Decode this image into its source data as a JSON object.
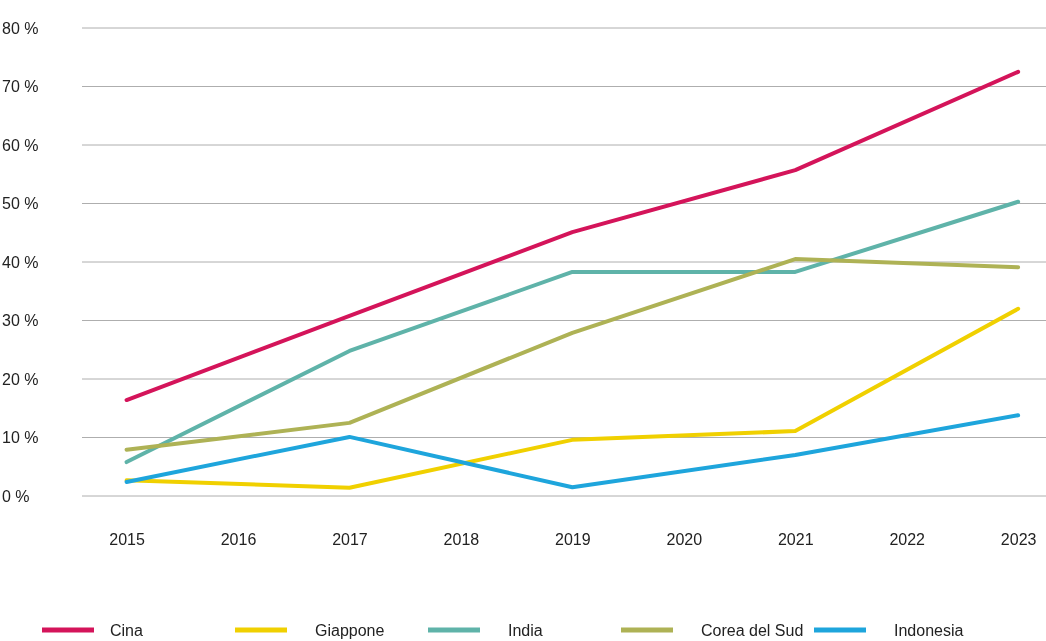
{
  "chart_data": {
    "type": "line",
    "x": [
      2015,
      2017,
      2019,
      2021,
      2023
    ],
    "xlim": [
      2014.6,
      2023.25
    ],
    "xticks": [
      2015,
      2016,
      2017,
      2018,
      2019,
      2020,
      2021,
      2022,
      2023
    ],
    "ylim": [
      0,
      80
    ],
    "yticks": [
      {
        "value": 0,
        "label": "0 %"
      },
      {
        "value": 10,
        "label": "10 %"
      },
      {
        "value": 20,
        "label": "20 %"
      },
      {
        "value": 30,
        "label": "30 %"
      },
      {
        "value": 40,
        "label": "40 %"
      },
      {
        "value": 50,
        "label": "50 %"
      },
      {
        "value": 60,
        "label": "60 %"
      },
      {
        "value": 70,
        "label": "70 %"
      },
      {
        "value": 80,
        "label": "80 %"
      }
    ],
    "grid": "y",
    "legend": "bottom",
    "marker": "none",
    "line_style": "solid",
    "series": [
      {
        "name": "Cina",
        "color": "#d4145a",
        "values": [
          16.4,
          30.8,
          45.1,
          55.7,
          72.5
        ]
      },
      {
        "name": "Giappone",
        "color": "#f0d000",
        "values": [
          2.7,
          1.4,
          9.6,
          11.1,
          32.0
        ]
      },
      {
        "name": "India",
        "color": "#5fb3a9",
        "values": [
          5.8,
          24.8,
          38.3,
          38.3,
          50.3
        ]
      },
      {
        "name": "Corea del Sud",
        "color": "#aeb255",
        "values": [
          7.9,
          12.5,
          27.9,
          40.5,
          39.1
        ]
      },
      {
        "name": "Indonesia",
        "color": "#1ea5dc",
        "values": [
          2.4,
          10.1,
          1.5,
          7.0,
          13.8
        ]
      }
    ]
  }
}
